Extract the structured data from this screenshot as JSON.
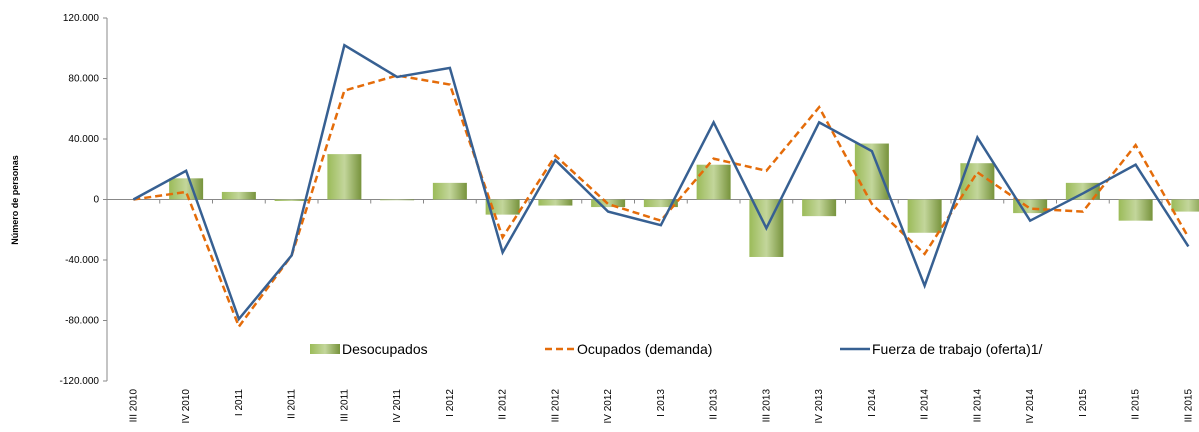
{
  "chart_data": {
    "type": "bar-line",
    "y_label": "Número de personas",
    "categories": [
      "III 2010",
      "IV 2010",
      "I 2011",
      "II 2011",
      "III 2011",
      "IV 2011",
      "I 2012",
      "II 2012",
      "III 2012",
      "IV 2012",
      "I 2013",
      "II 2013",
      "III 2013",
      "IV 2013",
      "I 2014",
      "II 2014",
      "III 2014",
      "IV 2014",
      "I 2015",
      "II 2015",
      "III 2015"
    ],
    "series": [
      {
        "name": "Desocupados",
        "type": "bar",
        "color": "#77933c",
        "values": [
          0,
          14000,
          5000,
          -1000,
          30000,
          -500,
          11000,
          -10000,
          -4000,
          -5000,
          -5000,
          23000,
          -38000,
          -11000,
          37000,
          -22000,
          24000,
          -9000,
          11000,
          -14000,
          -8000
        ]
      },
      {
        "name": "Ocupados (demanda)",
        "type": "line",
        "dashed": true,
        "color": "#e46c0a",
        "values": [
          0,
          5000,
          -84000,
          -37000,
          72000,
          82000,
          76000,
          -25000,
          29000,
          -3000,
          -14000,
          27000,
          19000,
          61000,
          -3000,
          -36000,
          18000,
          -6000,
          -8000,
          36000,
          -25000
        ]
      },
      {
        "name": "Fuerza de trabajo (oferta)1/",
        "type": "line",
        "dashed": false,
        "color": "#376092",
        "values": [
          0,
          19000,
          -79000,
          -37000,
          102000,
          81000,
          87000,
          -35000,
          26000,
          -8000,
          -17000,
          51000,
          -19000,
          51000,
          32000,
          -57000,
          41000,
          -14000,
          4000,
          23000,
          -31000
        ]
      }
    ],
    "ylim": [
      -120000,
      120000
    ],
    "yticks": [
      {
        "value": -120000,
        "label": "-120.000"
      },
      {
        "value": -80000,
        "label": "-80.000"
      },
      {
        "value": -40000,
        "label": "-40.000"
      },
      {
        "value": 0,
        "label": "0"
      },
      {
        "value": 40000,
        "label": "40.000"
      },
      {
        "value": 80000,
        "label": "80.000"
      },
      {
        "value": 120000,
        "label": "120.000"
      }
    ]
  }
}
